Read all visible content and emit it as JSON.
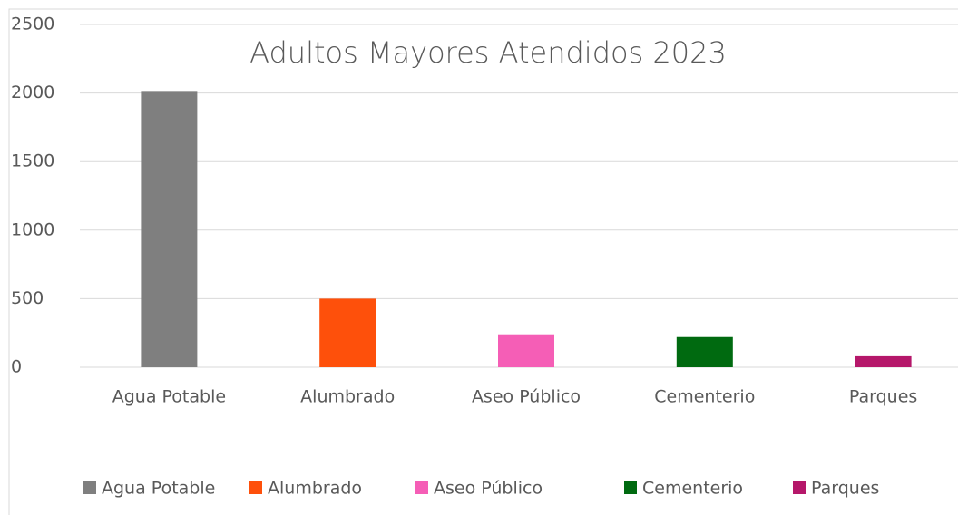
{
  "chart_data": {
    "type": "bar",
    "title": "Adultos Mayores Atendidos 2023",
    "categories": [
      "Agua Potable",
      "Alumbrado",
      "Aseo Público",
      "Cementerio",
      "Parques"
    ],
    "values": [
      2015,
      500,
      240,
      220,
      80
    ],
    "colors": [
      "#7f7f7f",
      "#fe500b",
      "#f55eb6",
      "#006a10",
      "#b5176a"
    ],
    "ylim": [
      0,
      2500
    ],
    "yticks": [
      0,
      500,
      1000,
      1500,
      2000,
      2500
    ],
    "grid": true,
    "legend": "bottom"
  }
}
